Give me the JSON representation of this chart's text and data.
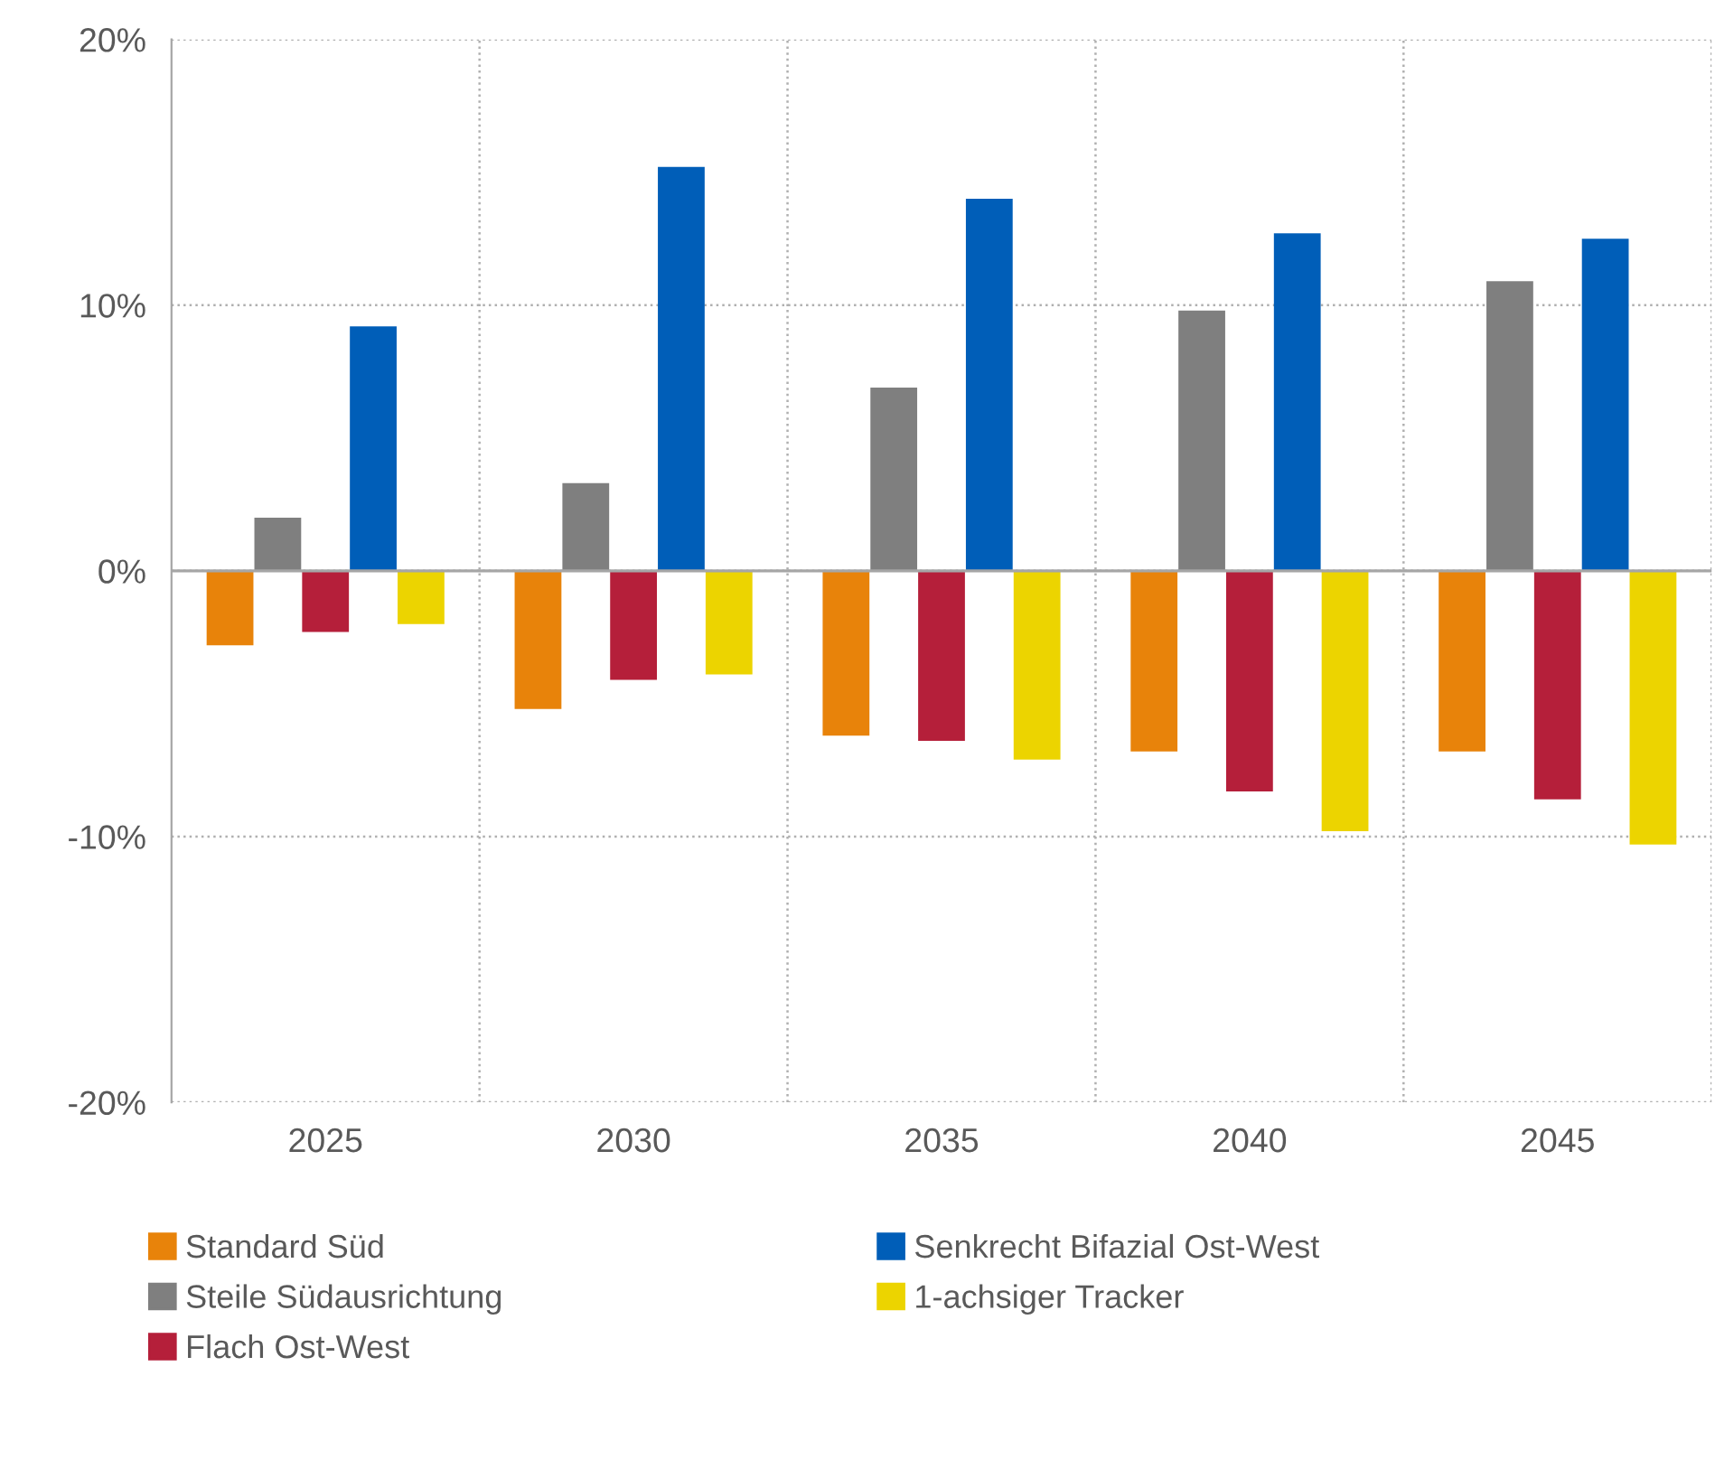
{
  "chart_data": {
    "type": "bar",
    "categories": [
      "2025",
      "2030",
      "2035",
      "2040",
      "2045"
    ],
    "series": [
      {
        "name": "Standard Süd",
        "color": "#e8830a",
        "values": [
          -2.8,
          -5.2,
          -6.2,
          -6.8,
          -6.8
        ]
      },
      {
        "name": "Steile Südausrichtung",
        "color": "#7f7f7f",
        "values": [
          2.0,
          3.3,
          6.9,
          9.8,
          10.9
        ]
      },
      {
        "name": "Flach Ost-West",
        "color": "#b51f3a",
        "values": [
          -2.3,
          -4.1,
          -6.4,
          -8.3,
          -8.6
        ]
      },
      {
        "name": "Senkrecht Bifazial Ost-West",
        "color": "#005eb8",
        "values": [
          9.2,
          15.2,
          14.0,
          12.7,
          12.5
        ]
      },
      {
        "name": "1-achsiger Tracker",
        "color": "#ecd400",
        "values": [
          -2.0,
          -3.9,
          -7.1,
          -9.8,
          -10.3
        ]
      }
    ],
    "ylim": [
      -20,
      20
    ],
    "yticks": [
      {
        "value": -20,
        "label": "-20%"
      },
      {
        "value": -10,
        "label": "-10%"
      },
      {
        "value": 0,
        "label": "0%"
      },
      {
        "value": 10,
        "label": "10%"
      },
      {
        "value": 20,
        "label": "20%"
      }
    ],
    "grid": true,
    "legend": "bottom"
  }
}
